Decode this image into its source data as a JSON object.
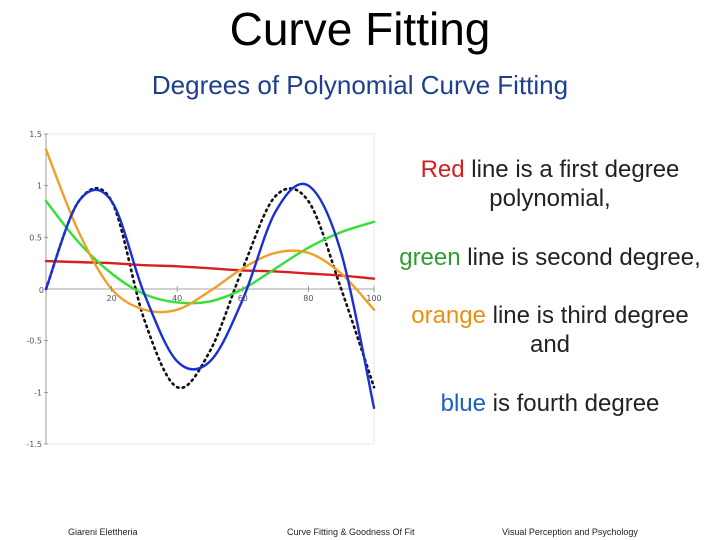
{
  "slide": {
    "title": "Curve Fitting",
    "subtitle": "Degrees of Polynomial Curve Fitting"
  },
  "notes": {
    "line1": {
      "color_word": "Red",
      "rest": " line is a first degree polynomial,"
    },
    "line2": {
      "color_word": "green",
      "rest": " line is second degree,"
    },
    "line3": {
      "color_word": "orange",
      "rest": " line is third degree and"
    },
    "line4": {
      "color_word": "blue",
      "rest": " is fourth degree"
    }
  },
  "colors": {
    "red": "#d42020",
    "green": "#2e9e2e",
    "orange": "#e8900e",
    "blue": "#1a5fc4",
    "subtitle": "#1f3e8c"
  },
  "footer": {
    "left": "Giareni Elettheria",
    "center": "Curve Fitting & Goodness Of Fit",
    "right": "Visual Perception and Psychology"
  },
  "chart_data": {
    "type": "line",
    "xlim": [
      0,
      100
    ],
    "ylim": [
      -1.5,
      1.5
    ],
    "x_ticks": [
      "20",
      "40",
      "60",
      "80",
      "100"
    ],
    "x_zero_label": "0",
    "y_ticks": [
      "1.5",
      "1",
      "0.5",
      "0",
      "-0.5",
      "-1",
      "-1.5"
    ],
    "grid": false,
    "x": [
      0,
      10,
      20,
      30,
      40,
      50,
      60,
      70,
      80,
      90,
      100
    ],
    "series": [
      {
        "color": "black",
        "style": "dotted",
        "values": [
          0.0,
          0.85,
          0.85,
          -0.3,
          -0.95,
          -0.6,
          0.2,
          0.9,
          0.85,
          0.0,
          -0.95
        ]
      },
      {
        "color": "red",
        "style": "line",
        "values": [
          0.27,
          0.26,
          0.25,
          0.23,
          0.22,
          0.2,
          0.18,
          0.17,
          0.15,
          0.13,
          0.1
        ]
      },
      {
        "color": "green",
        "style": "line",
        "values": [
          0.85,
          0.45,
          0.15,
          -0.05,
          -0.13,
          -0.12,
          0.0,
          0.2,
          0.4,
          0.55,
          0.65
        ]
      },
      {
        "color": "orange",
        "style": "line",
        "values": [
          1.35,
          0.55,
          0.0,
          -0.2,
          -0.2,
          -0.02,
          0.2,
          0.35,
          0.35,
          0.15,
          -0.2
        ]
      },
      {
        "color": "blue",
        "style": "line",
        "values": [
          0.0,
          0.85,
          0.85,
          -0.05,
          -0.7,
          -0.7,
          -0.1,
          0.75,
          1.0,
          0.35,
          -1.15
        ]
      }
    ]
  }
}
